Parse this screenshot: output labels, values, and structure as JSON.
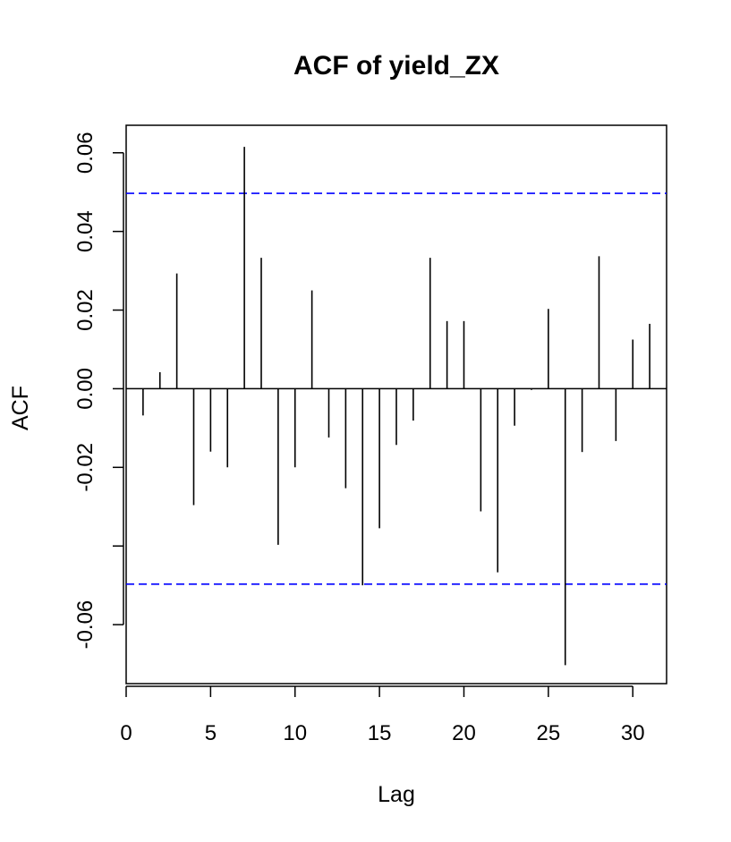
{
  "chart_data": {
    "type": "bar",
    "title": "ACF of yield_ZX",
    "xlabel": "Lag",
    "ylabel": "ACF",
    "xlim": [
      0,
      32
    ],
    "ylim": [
      -0.075,
      0.067
    ],
    "x_ticks": [
      0,
      5,
      10,
      15,
      20,
      25,
      30
    ],
    "x_tick_labels": [
      "0",
      "5",
      "10",
      "15",
      "20",
      "25",
      "30"
    ],
    "y_ticks": [
      -0.06,
      -0.04,
      -0.02,
      0.0,
      0.02,
      0.04,
      0.06
    ],
    "y_tick_labels": [
      "-0.06",
      "",
      "-0.02",
      "0.00",
      "0.02",
      "0.04",
      "0.06"
    ],
    "lags": [
      1,
      2,
      3,
      4,
      5,
      6,
      7,
      8,
      9,
      10,
      11,
      12,
      13,
      14,
      15,
      16,
      17,
      18,
      19,
      20,
      21,
      22,
      23,
      24,
      25,
      26,
      27,
      28,
      29,
      30,
      31
    ],
    "values": [
      -0.0068,
      0.0042,
      0.0293,
      -0.0296,
      -0.016,
      -0.02,
      0.0615,
      0.0333,
      -0.0397,
      -0.02,
      0.025,
      -0.0124,
      -0.0253,
      -0.05,
      -0.0355,
      -0.0143,
      -0.0081,
      0.0333,
      0.0172,
      0.0172,
      -0.0312,
      -0.0467,
      -0.0094,
      -0.0003,
      0.0203,
      -0.0703,
      -0.0161,
      0.0337,
      -0.0133,
      0.0125,
      0.0165
    ],
    "confidence_bound": 0.0497,
    "zero_line": true,
    "grid": false,
    "colors": {
      "bars": "#000000",
      "confidence_lines": "#0000ff",
      "axes": "#000000",
      "background": "#ffffff"
    }
  }
}
